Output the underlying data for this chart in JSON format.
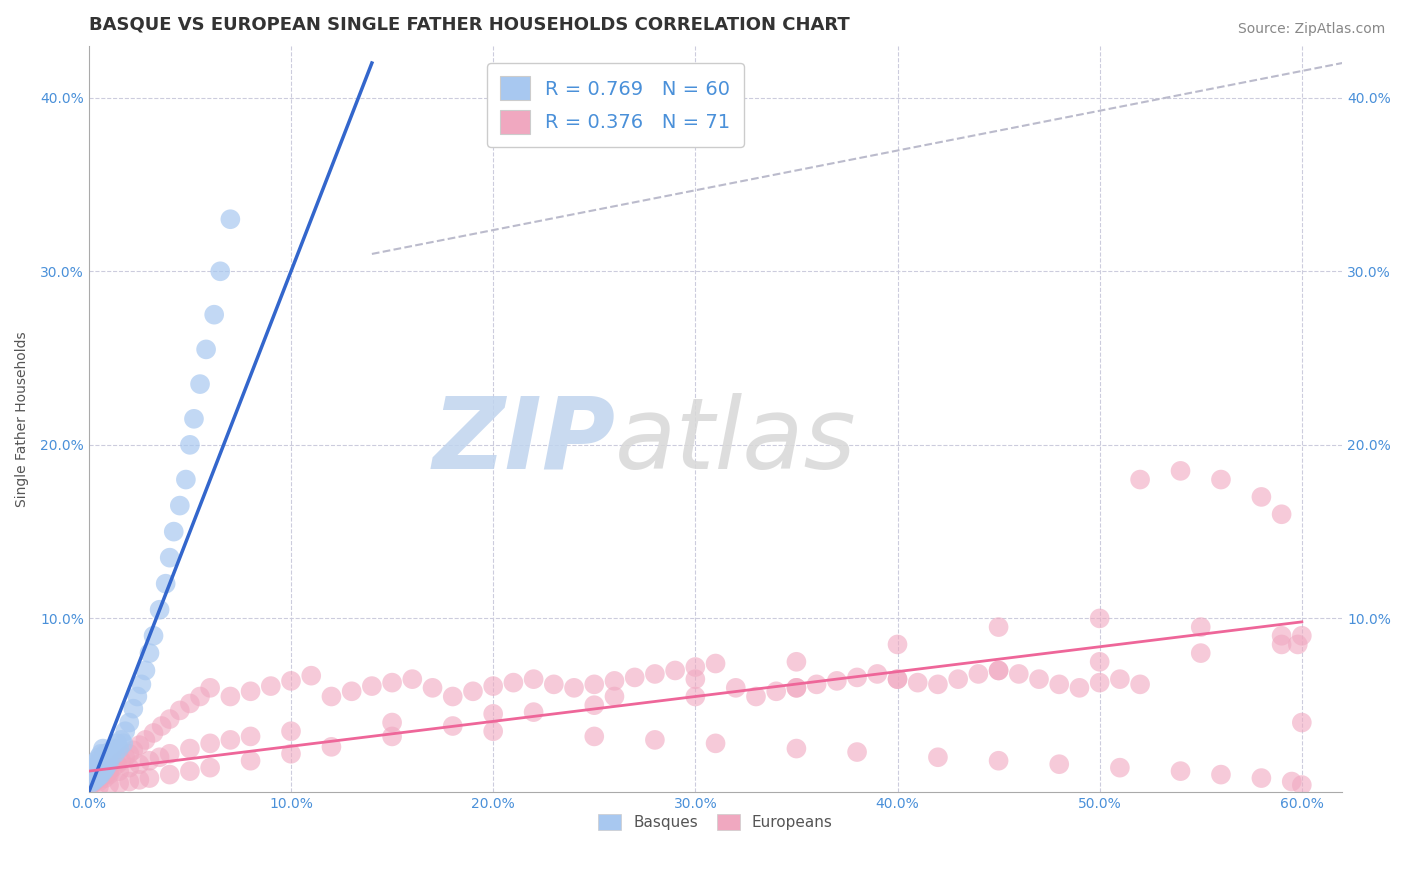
{
  "title": "BASQUE VS EUROPEAN SINGLE FATHER HOUSEHOLDS CORRELATION CHART",
  "source_text": "Source: ZipAtlas.com",
  "ylabel": "Single Father Households",
  "xlim": [
    0.0,
    0.62
  ],
  "ylim": [
    0.0,
    0.43
  ],
  "xtick_labels": [
    "0.0%",
    "10.0%",
    "20.0%",
    "30.0%",
    "40.0%",
    "50.0%",
    "60.0%"
  ],
  "xtick_vals": [
    0.0,
    0.1,
    0.2,
    0.3,
    0.4,
    0.5,
    0.6
  ],
  "ytick_labels": [
    "10.0%",
    "20.0%",
    "30.0%",
    "40.0%"
  ],
  "ytick_vals": [
    0.1,
    0.2,
    0.3,
    0.4
  ],
  "blue_color": "#A8C8F0",
  "pink_color": "#F0A8C0",
  "blue_line_color": "#3366CC",
  "pink_line_color": "#EE6699",
  "dashed_line_color": "#BBBBCC",
  "background_color": "#FFFFFF",
  "grid_color": "#CCCCDD",
  "title_color": "#333333",
  "tick_color": "#4A90D9",
  "legend_r_n_color": "#4A90D9",
  "watermark_color": "#C8D8F0",
  "legend1_label": "R = 0.769   N = 60",
  "legend2_label": "R = 0.376   N = 71",
  "bottom_legend_basques": "Basques",
  "bottom_legend_europeans": "Europeans",
  "basques_x": [
    0.001,
    0.001,
    0.002,
    0.002,
    0.002,
    0.003,
    0.003,
    0.003,
    0.003,
    0.004,
    0.004,
    0.004,
    0.004,
    0.005,
    0.005,
    0.005,
    0.005,
    0.006,
    0.006,
    0.006,
    0.006,
    0.007,
    0.007,
    0.007,
    0.007,
    0.008,
    0.008,
    0.008,
    0.009,
    0.009,
    0.01,
    0.01,
    0.011,
    0.012,
    0.013,
    0.014,
    0.015,
    0.016,
    0.017,
    0.018,
    0.02,
    0.022,
    0.024,
    0.026,
    0.028,
    0.03,
    0.032,
    0.035,
    0.038,
    0.04,
    0.042,
    0.045,
    0.048,
    0.05,
    0.052,
    0.055,
    0.058,
    0.062,
    0.065,
    0.07
  ],
  "basques_y": [
    0.005,
    0.008,
    0.006,
    0.01,
    0.014,
    0.007,
    0.009,
    0.012,
    0.016,
    0.008,
    0.011,
    0.013,
    0.018,
    0.009,
    0.013,
    0.016,
    0.02,
    0.01,
    0.014,
    0.017,
    0.022,
    0.012,
    0.015,
    0.019,
    0.025,
    0.013,
    0.017,
    0.022,
    0.015,
    0.02,
    0.017,
    0.023,
    0.02,
    0.025,
    0.022,
    0.028,
    0.025,
    0.03,
    0.028,
    0.035,
    0.04,
    0.048,
    0.055,
    0.062,
    0.07,
    0.08,
    0.09,
    0.105,
    0.12,
    0.135,
    0.15,
    0.165,
    0.18,
    0.2,
    0.215,
    0.235,
    0.255,
    0.275,
    0.3,
    0.33
  ],
  "europeans_x": [
    0.001,
    0.002,
    0.003,
    0.004,
    0.005,
    0.006,
    0.007,
    0.008,
    0.009,
    0.01,
    0.012,
    0.014,
    0.016,
    0.018,
    0.02,
    0.022,
    0.025,
    0.028,
    0.032,
    0.036,
    0.04,
    0.045,
    0.05,
    0.055,
    0.06,
    0.07,
    0.08,
    0.09,
    0.1,
    0.11,
    0.12,
    0.13,
    0.14,
    0.15,
    0.16,
    0.17,
    0.18,
    0.19,
    0.2,
    0.21,
    0.22,
    0.23,
    0.24,
    0.25,
    0.26,
    0.27,
    0.28,
    0.29,
    0.3,
    0.31,
    0.32,
    0.33,
    0.34,
    0.35,
    0.36,
    0.37,
    0.38,
    0.39,
    0.4,
    0.41,
    0.42,
    0.43,
    0.44,
    0.45,
    0.46,
    0.47,
    0.48,
    0.49,
    0.5,
    0.51,
    0.52
  ],
  "europeans_y": [
    0.004,
    0.005,
    0.006,
    0.007,
    0.008,
    0.009,
    0.01,
    0.01,
    0.011,
    0.012,
    0.014,
    0.016,
    0.018,
    0.02,
    0.022,
    0.024,
    0.027,
    0.03,
    0.034,
    0.038,
    0.042,
    0.047,
    0.051,
    0.055,
    0.06,
    0.055,
    0.058,
    0.061,
    0.064,
    0.067,
    0.055,
    0.058,
    0.061,
    0.063,
    0.065,
    0.06,
    0.055,
    0.058,
    0.061,
    0.063,
    0.065,
    0.062,
    0.06,
    0.062,
    0.064,
    0.066,
    0.068,
    0.07,
    0.072,
    0.074,
    0.06,
    0.055,
    0.058,
    0.06,
    0.062,
    0.064,
    0.066,
    0.068,
    0.065,
    0.063,
    0.062,
    0.065,
    0.068,
    0.07,
    0.068,
    0.065,
    0.062,
    0.06,
    0.063,
    0.065,
    0.062
  ],
  "europeans_x2": [
    0.2,
    0.25,
    0.28,
    0.31,
    0.35,
    0.38,
    0.42,
    0.45,
    0.48,
    0.51,
    0.54,
    0.56,
    0.58,
    0.595,
    0.6,
    0.005,
    0.008,
    0.01,
    0.015,
    0.02,
    0.025,
    0.03,
    0.035,
    0.04,
    0.05,
    0.06,
    0.07,
    0.08,
    0.1,
    0.15,
    0.2,
    0.25,
    0.3,
    0.35,
    0.4,
    0.45,
    0.5,
    0.55,
    0.59,
    0.6,
    0.005,
    0.01,
    0.015,
    0.02,
    0.025,
    0.03,
    0.04,
    0.05,
    0.06,
    0.08,
    0.1,
    0.12,
    0.15,
    0.18,
    0.22,
    0.26,
    0.3,
    0.35,
    0.4,
    0.45,
    0.5,
    0.55,
    0.59,
    0.598,
    0.6,
    0.59,
    0.58,
    0.56,
    0.54,
    0.52
  ],
  "europeans_y2": [
    0.035,
    0.032,
    0.03,
    0.028,
    0.025,
    0.023,
    0.02,
    0.018,
    0.016,
    0.014,
    0.012,
    0.01,
    0.008,
    0.006,
    0.004,
    0.006,
    0.008,
    0.01,
    0.012,
    0.014,
    0.016,
    0.018,
    0.02,
    0.022,
    0.025,
    0.028,
    0.03,
    0.032,
    0.035,
    0.04,
    0.045,
    0.05,
    0.055,
    0.06,
    0.065,
    0.07,
    0.075,
    0.08,
    0.085,
    0.09,
    0.003,
    0.004,
    0.005,
    0.006,
    0.007,
    0.008,
    0.01,
    0.012,
    0.014,
    0.018,
    0.022,
    0.026,
    0.032,
    0.038,
    0.046,
    0.055,
    0.065,
    0.075,
    0.085,
    0.095,
    0.1,
    0.095,
    0.09,
    0.085,
    0.04,
    0.16,
    0.17,
    0.18,
    0.185,
    0.18
  ],
  "blue_trend_x": [
    0.0,
    0.14
  ],
  "blue_trend_y": [
    0.0,
    0.42
  ],
  "pink_trend_x": [
    0.0,
    0.6
  ],
  "pink_trend_y": [
    0.012,
    0.098
  ],
  "dashed_trend_x": [
    0.14,
    0.62
  ],
  "dashed_trend_y": [
    0.31,
    0.42
  ],
  "title_fontsize": 13,
  "axis_label_fontsize": 10,
  "tick_fontsize": 10,
  "source_fontsize": 10
}
